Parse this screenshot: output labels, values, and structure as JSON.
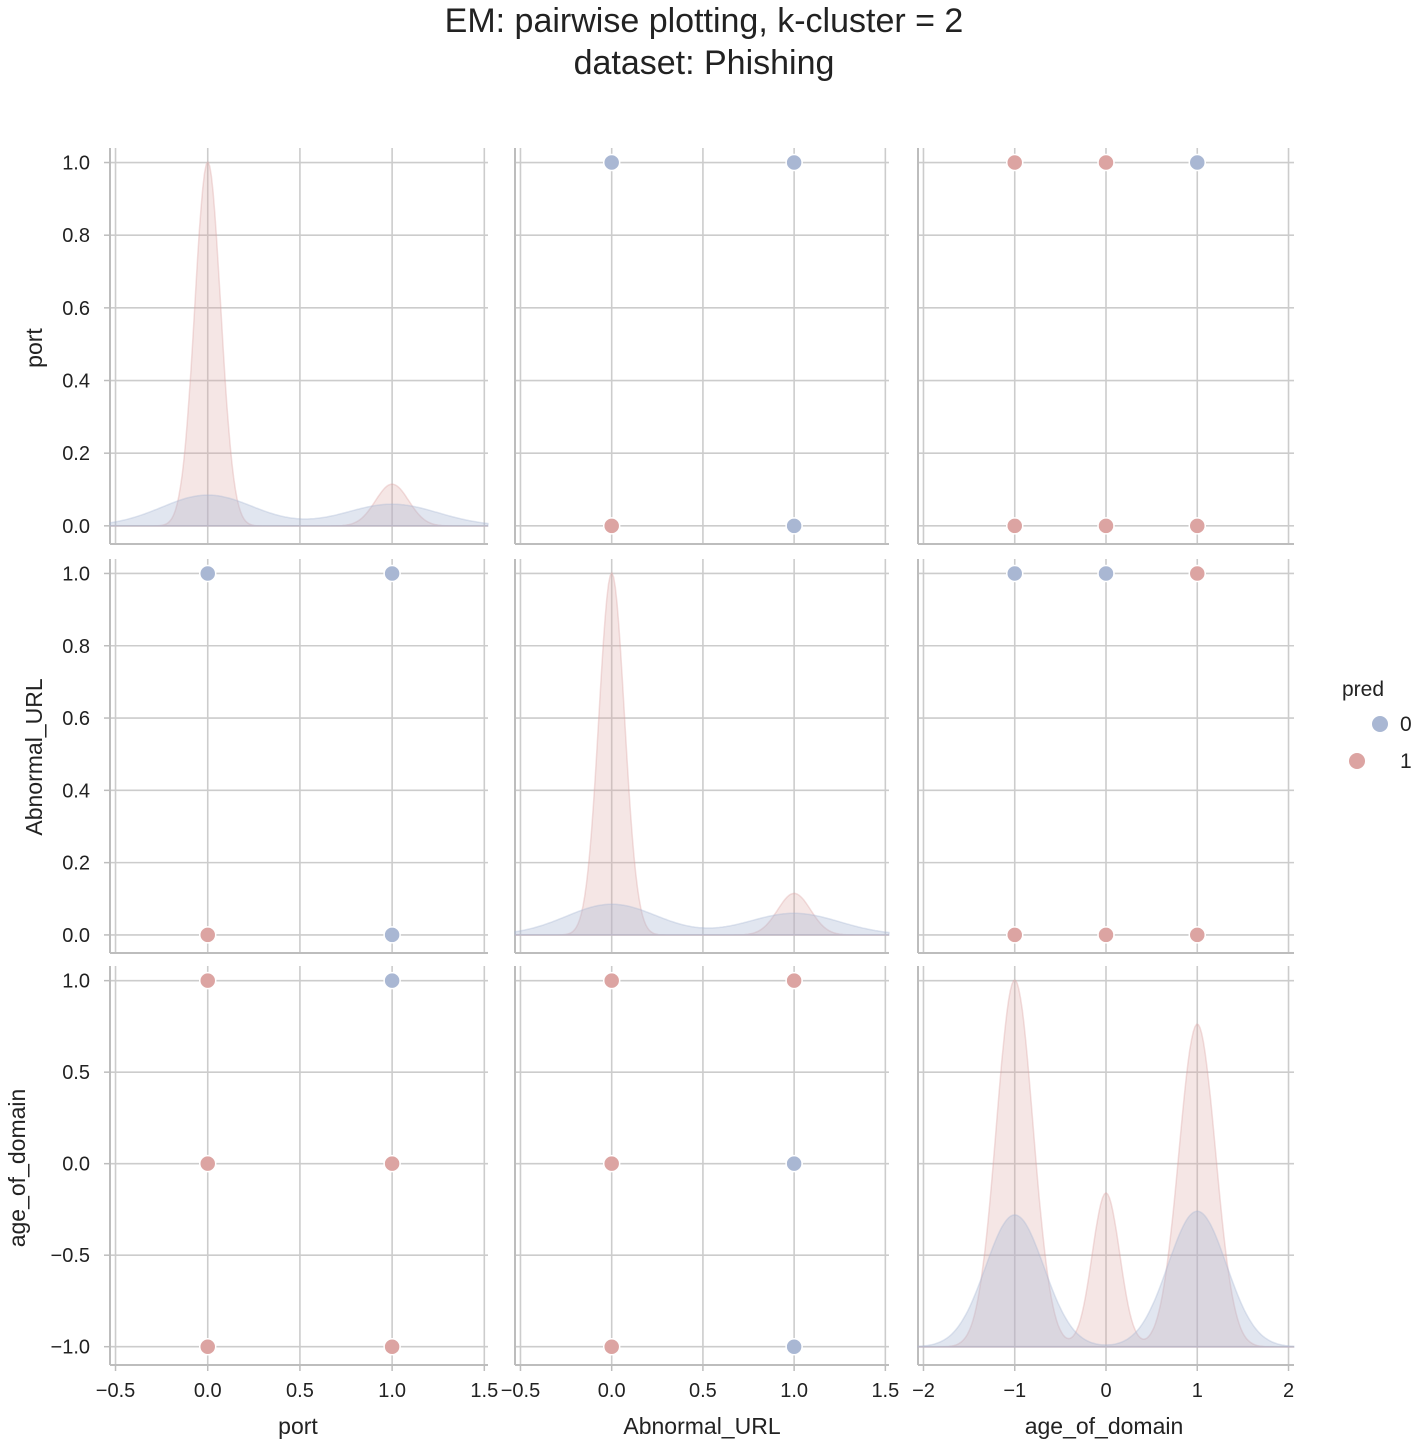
{
  "title_line1": "EM: pairwise plotting, k-cluster = 2",
  "title_line2": "dataset: Phishing",
  "legend": {
    "title": "pred",
    "labels": [
      "0",
      "1"
    ]
  },
  "colors": {
    "cluster0": "#a9b7d3",
    "cluster1": "#dca4a2",
    "grid": "#cccccc",
    "spine": "#bdbdbd"
  },
  "chart_data": {
    "type": "scatter",
    "subtype": "pairplot",
    "title": "EM: pairwise plotting, k-cluster = 2 dataset: Phishing",
    "hue": "pred",
    "variables": [
      {
        "name": "port",
        "ticks": [
          0.0,
          0.2,
          0.4,
          0.6,
          0.8,
          1.0
        ],
        "tick_labels": [
          "0.0",
          "0.2",
          "0.4",
          "0.6",
          "0.8",
          "1.0"
        ],
        "x_ticks": [
          -0.5,
          0.0,
          0.5,
          1.0,
          1.5
        ],
        "x_tick_labels": [
          "−0.5",
          "0.0",
          "0.5",
          "1.0",
          "1.5"
        ],
        "xlim": [
          -0.53,
          1.52
        ],
        "ylim": [
          -0.05,
          1.04
        ]
      },
      {
        "name": "Abnormal_URL",
        "ticks": [
          0.0,
          0.2,
          0.4,
          0.6,
          0.8,
          1.0
        ],
        "tick_labels": [
          "0.0",
          "0.2",
          "0.4",
          "0.6",
          "0.8",
          "1.0"
        ],
        "x_ticks": [
          -0.5,
          0.0,
          0.5,
          1.0,
          1.5
        ],
        "x_tick_labels": [
          "−0.5",
          "0.0",
          "0.5",
          "1.0",
          "1.5"
        ],
        "xlim": [
          -0.53,
          1.52
        ],
        "ylim": [
          -0.05,
          1.04
        ]
      },
      {
        "name": "age_of_domain",
        "ticks": [
          -1.0,
          -0.5,
          0.0,
          0.5,
          1.0
        ],
        "tick_labels": [
          "−1.0",
          "−0.5",
          "0.0",
          "0.5",
          "1.0"
        ],
        "x_ticks": [
          -2,
          -1,
          0,
          1,
          2
        ],
        "x_tick_labels": [
          "−2",
          "−1",
          "0",
          "1",
          "2"
        ],
        "xlim": [
          -2.06,
          2.06
        ],
        "ylim": [
          -1.1,
          1.08
        ]
      }
    ],
    "scatter_points": {
      "0,1": [
        {
          "x": 0,
          "y": 1,
          "pred": 0
        },
        {
          "x": 1,
          "y": 1,
          "pred": 0
        },
        {
          "x": 0,
          "y": 0,
          "pred": 1
        },
        {
          "x": 1,
          "y": 0,
          "pred": 0
        }
      ],
      "0,2": [
        {
          "x": -1,
          "y": 1,
          "pred": 1
        },
        {
          "x": 0,
          "y": 1,
          "pred": 1
        },
        {
          "x": 1,
          "y": 1,
          "pred": 0
        },
        {
          "x": -1,
          "y": 0,
          "pred": 1
        },
        {
          "x": 0,
          "y": 0,
          "pred": 1
        },
        {
          "x": 1,
          "y": 0,
          "pred": 1
        }
      ],
      "1,0": [
        {
          "x": 0,
          "y": 1,
          "pred": 0
        },
        {
          "x": 1,
          "y": 1,
          "pred": 0
        },
        {
          "x": 0,
          "y": 0,
          "pred": 1
        },
        {
          "x": 1,
          "y": 0,
          "pred": 0
        }
      ],
      "1,2": [
        {
          "x": -1,
          "y": 1,
          "pred": 0
        },
        {
          "x": 0,
          "y": 1,
          "pred": 0
        },
        {
          "x": 1,
          "y": 1,
          "pred": 1
        },
        {
          "x": -1,
          "y": 0,
          "pred": 1
        },
        {
          "x": 0,
          "y": 0,
          "pred": 1
        },
        {
          "x": 1,
          "y": 0,
          "pred": 1
        }
      ],
      "2,0": [
        {
          "x": 0,
          "y": 1,
          "pred": 1
        },
        {
          "x": 1,
          "y": 1,
          "pred": 0
        },
        {
          "x": 0,
          "y": 0,
          "pred": 1
        },
        {
          "x": 1,
          "y": 0,
          "pred": 1
        },
        {
          "x": 0,
          "y": -1,
          "pred": 1
        },
        {
          "x": 1,
          "y": -1,
          "pred": 1
        }
      ],
      "2,1": [
        {
          "x": 0,
          "y": 1,
          "pred": 1
        },
        {
          "x": 1,
          "y": 1,
          "pred": 1
        },
        {
          "x": 0,
          "y": 0,
          "pred": 1
        },
        {
          "x": 1,
          "y": 0,
          "pred": 0
        },
        {
          "x": 0,
          "y": -1,
          "pred": 1
        },
        {
          "x": 1,
          "y": -1,
          "pred": 0
        }
      ]
    },
    "kde_diagonal": [
      {
        "variable": "port",
        "pred0": [
          {
            "mu": 0,
            "sigma": 0.25,
            "height": 0.085
          },
          {
            "mu": 1,
            "sigma": 0.25,
            "height": 0.06
          }
        ],
        "pred1": [
          {
            "mu": 0,
            "sigma": 0.07,
            "height": 1.0
          },
          {
            "mu": 1,
            "sigma": 0.09,
            "height": 0.115
          }
        ]
      },
      {
        "variable": "Abnormal_URL",
        "pred0": [
          {
            "mu": 0,
            "sigma": 0.25,
            "height": 0.085
          },
          {
            "mu": 1,
            "sigma": 0.25,
            "height": 0.06
          }
        ],
        "pred1": [
          {
            "mu": 0,
            "sigma": 0.07,
            "height": 1.0
          },
          {
            "mu": 1,
            "sigma": 0.09,
            "height": 0.115
          }
        ]
      },
      {
        "variable": "age_of_domain",
        "pred0": [
          {
            "mu": -1,
            "sigma": 0.32,
            "height": 0.36
          },
          {
            "mu": 1,
            "sigma": 0.32,
            "height": 0.37
          }
        ],
        "pred1": [
          {
            "mu": -1,
            "sigma": 0.2,
            "height": 1.0
          },
          {
            "mu": 0,
            "sigma": 0.15,
            "height": 0.42
          },
          {
            "mu": 1,
            "sigma": 0.2,
            "height": 0.88
          }
        ]
      }
    ],
    "grid": true,
    "legend_position": "right"
  }
}
